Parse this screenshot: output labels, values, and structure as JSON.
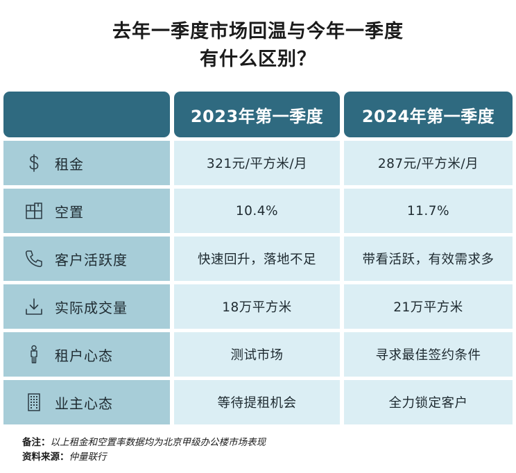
{
  "title": {
    "line1": "去年一季度市场回温与今年一季度",
    "line2": "有什么区别？"
  },
  "header": {
    "col1": "",
    "col2": "2023年第一季度",
    "col3": "2024年第一季度"
  },
  "rows": [
    {
      "icon": "dollar-icon",
      "label": "租金",
      "v2023": "321元/平方米/月",
      "v2024": "287元/平方米/月"
    },
    {
      "icon": "floorplan-icon",
      "label": "空置",
      "v2023": "10.4%",
      "v2024": "11.7%"
    },
    {
      "icon": "phone-icon",
      "label": "客户活跃度",
      "v2023": "快速回升，落地不足",
      "v2024": "带看活跃，有效需求多"
    },
    {
      "icon": "download-icon",
      "label": "实际成交量",
      "v2023": "18万平方米",
      "v2024": "21万平方米"
    },
    {
      "icon": "person-icon",
      "label": "租户心态",
      "v2023": "测试市场",
      "v2024": "寻求最佳签约条件"
    },
    {
      "icon": "building-icon",
      "label": "业主心态",
      "v2023": "等待提租机会",
      "v2024": "全力锁定客户"
    }
  ],
  "notes": {
    "note_label": "备注：",
    "note_text": "以上租金和空置率数据均为北京甲级办公楼市场表现",
    "source_label": "资料来源：",
    "source_text": "仲量联行"
  },
  "colors": {
    "header_bg": "#2f6a80",
    "rowhead_bg": "#a7cdd8",
    "cell_bg": "#dbeef4"
  }
}
